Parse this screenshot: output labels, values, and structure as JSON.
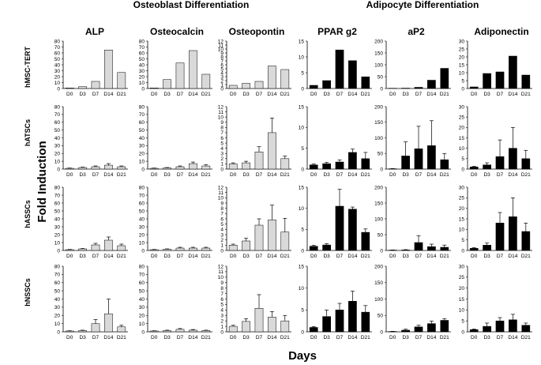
{
  "chart_data": {
    "type": "bar",
    "group_titles": [
      "Osteoblast Differentiation",
      "Adipocyte Differentiation"
    ],
    "ylabel": "Fold Induction",
    "xlabel": "Days",
    "categories": [
      "D0",
      "D3",
      "D7",
      "D14",
      "D21"
    ],
    "rows": [
      "hMSC-TERT",
      "hATSCs",
      "hASSCs",
      "hNSSCs"
    ],
    "columns": [
      {
        "name": "ALP",
        "group": "Osteoblast Differentiation",
        "fill": "#d9d9d9",
        "ylim": [
          0,
          80
        ],
        "ticks": [
          0,
          10,
          20,
          30,
          40,
          50,
          60,
          70,
          80
        ]
      },
      {
        "name": "Osteocalcin",
        "group": "Osteoblast Differentiation",
        "fill": "#d9d9d9",
        "ylim": [
          0,
          80
        ],
        "ticks": [
          0,
          10,
          20,
          30,
          40,
          50,
          60,
          70,
          80
        ]
      },
      {
        "name": "Osteopontin",
        "group": "Osteoblast Differentiation",
        "fill": "#d9d9d9",
        "ylim": [
          0,
          12
        ],
        "ticks": [
          0,
          1,
          2,
          3,
          4,
          5,
          6,
          7,
          8,
          9,
          10,
          11,
          12
        ]
      },
      {
        "name": "PPAR g2",
        "group": "Adipocyte Differentiation",
        "fill": "#000000",
        "ylim": [
          0,
          15
        ],
        "ticks": [
          0,
          5,
          10,
          15
        ]
      },
      {
        "name": "aP2",
        "group": "Adipocyte Differentiation",
        "fill": "#000000",
        "ylim": [
          0,
          200
        ],
        "ticks": [
          0,
          50,
          100,
          150,
          200
        ]
      },
      {
        "name": "Adiponectin",
        "group": "Adipocyte Differentiation",
        "fill": "#000000",
        "ylim": [
          0,
          30
        ],
        "ticks": [
          0,
          5,
          10,
          15,
          20,
          25,
          30
        ]
      }
    ],
    "panels": [
      [
        {
          "values": [
            1,
            3,
            12,
            65,
            27
          ],
          "errors": [
            0,
            0,
            0,
            0,
            0
          ]
        },
        {
          "values": [
            1,
            15,
            43,
            64,
            24
          ],
          "errors": [
            0,
            0,
            0,
            0,
            0
          ]
        },
        {
          "values": [
            0.8,
            1.3,
            1.8,
            5.7,
            4.8
          ],
          "errors": [
            0,
            0,
            0,
            0,
            0
          ]
        },
        {
          "values": [
            1,
            2.5,
            12.2,
            8.8,
            3.7
          ],
          "errors": [
            0,
            0,
            0,
            0,
            0
          ]
        },
        {
          "values": [
            1,
            1.5,
            5,
            35,
            85
          ],
          "errors": [
            0,
            0,
            0,
            0,
            0
          ]
        },
        {
          "values": [
            1,
            9.5,
            10.5,
            20.5,
            8.5
          ],
          "errors": [
            0,
            0,
            0,
            0,
            0
          ]
        }
      ],
      [
        {
          "values": [
            1,
            2,
            3,
            5,
            3
          ],
          "errors": [
            0.3,
            0.5,
            1,
            2,
            1
          ]
        },
        {
          "values": [
            1,
            1.5,
            3,
            7,
            4
          ],
          "errors": [
            0.3,
            0.5,
            1,
            2,
            1.5
          ]
        },
        {
          "values": [
            1,
            1.2,
            3.3,
            7,
            2
          ],
          "errors": [
            0.2,
            0.3,
            1,
            2.8,
            0.5
          ]
        },
        {
          "values": [
            1,
            1.3,
            1.7,
            4,
            2.5
          ],
          "errors": [
            0.2,
            0.3,
            0.5,
            0.8,
            1.5
          ]
        },
        {
          "values": [
            1,
            42,
            65,
            75,
            30
          ],
          "errors": [
            0.5,
            45,
            72,
            80,
            20
          ]
        },
        {
          "values": [
            1,
            2,
            6,
            10,
            5
          ],
          "errors": [
            0.3,
            1,
            8,
            10,
            4
          ]
        }
      ],
      [
        {
          "values": [
            1,
            2,
            7,
            13,
            6
          ],
          "errors": [
            0.3,
            0.5,
            2,
            4,
            2
          ]
        },
        {
          "values": [
            1,
            1.5,
            3,
            3,
            3
          ],
          "errors": [
            0.3,
            0.5,
            1,
            1,
            1
          ]
        },
        {
          "values": [
            1,
            1.8,
            4.8,
            5.8,
            3.5
          ],
          "errors": [
            0.2,
            0.5,
            1.2,
            2.8,
            2.6
          ]
        },
        {
          "values": [
            1,
            1.3,
            10.5,
            9.8,
            4.3
          ],
          "errors": [
            0.2,
            0.3,
            4,
            0.5,
            0.8
          ]
        },
        {
          "values": [
            1,
            1.5,
            25,
            12,
            10
          ],
          "errors": [
            0.5,
            1,
            22,
            8,
            7
          ]
        },
        {
          "values": [
            1,
            2.5,
            13,
            16,
            9
          ],
          "errors": [
            0.3,
            1,
            5,
            9,
            4
          ]
        }
      ],
      [
        {
          "values": [
            1,
            1.5,
            10,
            22,
            6
          ],
          "errors": [
            0.3,
            0.5,
            5,
            18,
            2
          ]
        },
        {
          "values": [
            1,
            1.5,
            3,
            2,
            1.5
          ],
          "errors": [
            0.3,
            0.5,
            1,
            0.8,
            0.5
          ]
        },
        {
          "values": [
            1,
            1.9,
            4.3,
            2.7,
            2
          ],
          "errors": [
            0.2,
            0.5,
            2.5,
            1,
            1
          ]
        },
        {
          "values": [
            1,
            3.5,
            5,
            7,
            4.5
          ],
          "errors": [
            0.2,
            1.5,
            1.5,
            2.3,
            1.5
          ]
        },
        {
          "values": [
            1,
            5,
            15,
            25,
            35
          ],
          "errors": [
            0.5,
            3,
            5,
            8,
            5
          ]
        },
        {
          "values": [
            1,
            2.5,
            5,
            5.5,
            3
          ],
          "errors": [
            0.3,
            1.5,
            1.5,
            2.5,
            1
          ]
        }
      ]
    ]
  }
}
